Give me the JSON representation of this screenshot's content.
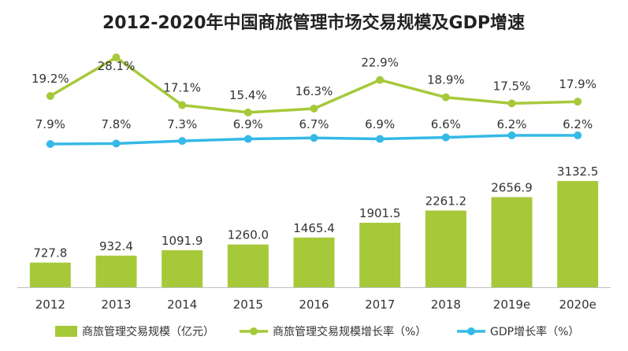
{
  "chart_data": {
    "type": "bar",
    "title": "2012-2020年中国商旅管理市场交易规模及GDP增速",
    "categories": [
      "2012",
      "2013",
      "2014",
      "2015",
      "2016",
      "2017",
      "2018",
      "2019e",
      "2020e"
    ],
    "series": [
      {
        "name": "商旅管理交易规模（亿元）",
        "type": "bar",
        "color": "#a6c93a",
        "values": [
          727.8,
          932.4,
          1091.9,
          1260.0,
          1465.4,
          1901.5,
          2261.2,
          2656.9,
          3132.5
        ],
        "labels": [
          "727.8",
          "932.4",
          "1091.9",
          "1260.0",
          "1465.4",
          "1901.5",
          "2261.2",
          "2656.9",
          "3132.5"
        ]
      },
      {
        "name": "商旅管理交易规模增长率（%）",
        "type": "line",
        "color": "#a6c93a",
        "values": [
          19.2,
          28.1,
          17.1,
          15.4,
          16.3,
          22.9,
          18.9,
          17.5,
          17.9
        ],
        "labels": [
          "19.2%",
          "28.1%",
          "17.1%",
          "15.4%",
          "16.3%",
          "22.9%",
          "18.9%",
          "17.5%",
          "17.9%"
        ]
      },
      {
        "name": "GDP增长率（%）",
        "type": "line",
        "color": "#35b9e6",
        "values": [
          7.9,
          7.8,
          7.3,
          6.9,
          6.7,
          6.9,
          6.6,
          6.2,
          6.2
        ],
        "labels": [
          "7.9%",
          "7.8%",
          "7.3%",
          "6.9%",
          "6.7%",
          "6.9%",
          "6.6%",
          "6.2%",
          "6.2%"
        ]
      }
    ],
    "legend_position": "bottom",
    "grid": false
  }
}
